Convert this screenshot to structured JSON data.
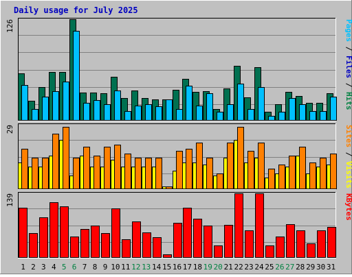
{
  "title": "Daily usage for July 2025",
  "colors": {
    "background": "#c0c0c0",
    "title": "#0000c0",
    "pages": "#007050",
    "files": "#00c0ff",
    "hits": "#008040",
    "sites": "#ff8000",
    "visits": "#ffff00",
    "kbytes": "#ff0000",
    "weekend_day": "#008040",
    "weekday": "#000000"
  },
  "chart_data": [
    {
      "type": "bar",
      "panel": "top",
      "max_label": "126",
      "ylim": [
        0,
        126
      ],
      "right_label_parts": [
        {
          "text": "Pages",
          "color": "#00c0ff"
        },
        {
          "text": " / ",
          "color": "#000000"
        },
        {
          "text": "Files",
          "color": "#0000c0"
        },
        {
          "text": " / ",
          "color": "#000000"
        },
        {
          "text": "Hits",
          "color": "#008040"
        }
      ],
      "categories": [
        "1",
        "2",
        "3",
        "4",
        "5",
        "6",
        "7",
        "8",
        "9",
        "10",
        "11",
        "12",
        "13",
        "14",
        "15",
        "16",
        "17",
        "18",
        "19",
        "20",
        "21",
        "22",
        "23",
        "24",
        "25",
        "26",
        "27",
        "28",
        "29",
        "30",
        "31"
      ],
      "series": [
        {
          "name": "Hits",
          "color": "#007050",
          "values": [
            58,
            24,
            41,
            60,
            60,
            126,
            34,
            34,
            33,
            54,
            27,
            37,
            27,
            26,
            26,
            38,
            51,
            35,
            36,
            14,
            39,
            68,
            28,
            66,
            10,
            20,
            35,
            30,
            21,
            21,
            33
          ]
        },
        {
          "name": "Pages",
          "color": "#00c0ff",
          "values": [
            44,
            14,
            29,
            36,
            48,
            111,
            21,
            25,
            20,
            37,
            11,
            18,
            20,
            17,
            26,
            14,
            43,
            18,
            33,
            10,
            20,
            45,
            14,
            41,
            5,
            10,
            27,
            20,
            11,
            11,
            29
          ]
        }
      ]
    },
    {
      "type": "bar",
      "panel": "middle",
      "max_label": "29",
      "ylim": [
        0,
        29
      ],
      "right_label_parts": [
        {
          "text": "Sites",
          "color": "#ff8000"
        },
        {
          "text": " / ",
          "color": "#000000"
        },
        {
          "text": "Visits",
          "color": "#ffff00"
        }
      ],
      "categories": [
        "1",
        "2",
        "3",
        "4",
        "5",
        "6",
        "7",
        "8",
        "9",
        "10",
        "11",
        "12",
        "13",
        "14",
        "15",
        "16",
        "17",
        "18",
        "19",
        "20",
        "21",
        "22",
        "23",
        "24",
        "25",
        "26",
        "27",
        "28",
        "29",
        "30",
        "31"
      ],
      "series": [
        {
          "name": "Visits",
          "color": "#ffff00",
          "values": [
            12,
            10,
            10,
            15,
            22,
            6,
            15,
            10,
            10,
            13,
            10,
            10,
            10,
            10,
            1,
            8,
            12,
            12,
            11,
            6,
            14,
            22,
            12,
            14,
            5,
            7,
            10,
            15,
            7,
            10,
            11
          ]
        },
        {
          "name": "Sites",
          "color": "#ff8000",
          "values": [
            18,
            14,
            14,
            25,
            28,
            14,
            19,
            15,
            19,
            20,
            16,
            14,
            14,
            14,
            1,
            17,
            18,
            21,
            14,
            7,
            21,
            28,
            17,
            21,
            9,
            11,
            15,
            19,
            12,
            14,
            16
          ]
        }
      ]
    },
    {
      "type": "bar",
      "panel": "bottom",
      "max_label": "139",
      "ylim": [
        0,
        139
      ],
      "right_label_parts": [
        {
          "text": "KBytes",
          "color": "#ff0000"
        }
      ],
      "categories": [
        "1",
        "2",
        "3",
        "4",
        "5",
        "6",
        "7",
        "8",
        "9",
        "10",
        "11",
        "12",
        "13",
        "14",
        "15",
        "16",
        "17",
        "18",
        "19",
        "20",
        "21",
        "22",
        "23",
        "24",
        "25",
        "26",
        "27",
        "28",
        "29",
        "30",
        "31"
      ],
      "series": [
        {
          "name": "KBytes",
          "color": "#ff0000",
          "values": [
            108,
            52,
            87,
            120,
            110,
            45,
            61,
            69,
            52,
            106,
            39,
            78,
            54,
            43,
            6,
            75,
            108,
            83,
            69,
            26,
            70,
            139,
            59,
            139,
            25,
            45,
            72,
            58,
            30,
            58,
            66
          ]
        }
      ]
    }
  ],
  "day_labels": [
    {
      "text": "1",
      "weekend": false
    },
    {
      "text": "2",
      "weekend": false
    },
    {
      "text": "3",
      "weekend": false
    },
    {
      "text": "4",
      "weekend": false
    },
    {
      "text": "5",
      "weekend": true
    },
    {
      "text": "6",
      "weekend": true
    },
    {
      "text": "7",
      "weekend": false
    },
    {
      "text": "8",
      "weekend": false
    },
    {
      "text": "9",
      "weekend": false
    },
    {
      "text": "10",
      "weekend": false
    },
    {
      "text": "11",
      "weekend": false
    },
    {
      "text": "12",
      "weekend": true
    },
    {
      "text": "13",
      "weekend": true
    },
    {
      "text": "14",
      "weekend": false
    },
    {
      "text": "15",
      "weekend": false
    },
    {
      "text": "16",
      "weekend": false
    },
    {
      "text": "17",
      "weekend": false
    },
    {
      "text": "18",
      "weekend": false
    },
    {
      "text": "19",
      "weekend": true
    },
    {
      "text": "20",
      "weekend": true
    },
    {
      "text": "21",
      "weekend": false
    },
    {
      "text": "22",
      "weekend": false
    },
    {
      "text": "23",
      "weekend": false
    },
    {
      "text": "24",
      "weekend": false
    },
    {
      "text": "25",
      "weekend": false
    },
    {
      "text": "26",
      "weekend": true
    },
    {
      "text": "27",
      "weekend": true
    },
    {
      "text": "28",
      "weekend": false
    },
    {
      "text": "29",
      "weekend": false
    },
    {
      "text": "30",
      "weekend": false
    },
    {
      "text": "31",
      "weekend": false
    }
  ]
}
